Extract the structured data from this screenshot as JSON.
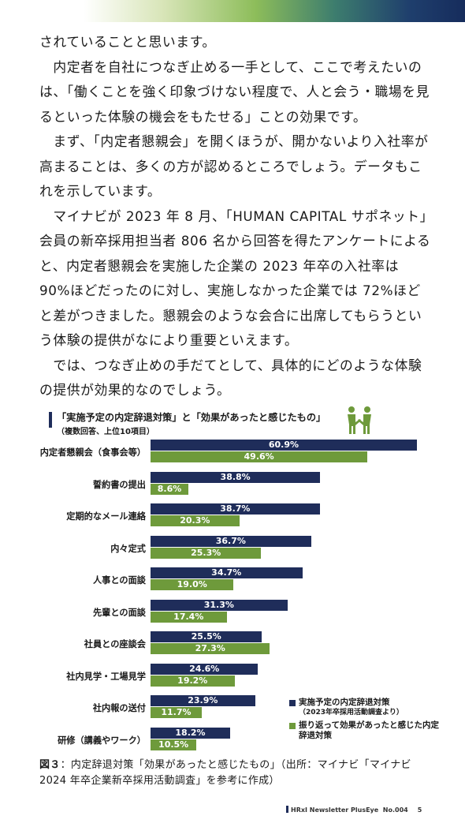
{
  "body_paragraphs": [
    "されていることと思います。",
    "　内定者を自社につなぎ止める一手として、ここで考えたいのは、「働くことを強く印象づけない程度で、人と会う・職場を見るといった体験の機会をもたせる」ことの効果です。",
    "　まず、「内定者懇親会」を開くほうが、開かないより入社率が高まることは、多くの方が認めるところでしょう。データもこれを示しています。",
    "　マイナビが 2023 年 8 月、「HUMAN CAPITAL サポネット」会員の新卒採用担当者 806 名から回答を得たアンケートによると、内定者懇親会を実施した企業の 2023 年卒の入社率は 90%ほどだったのに対し、実施しなかった企業では 72%ほどと差がつきました。懇親会のような会合に出席してもらうという体験の提供がなにより重要といえます。",
    "　では、つなぎ止めの手だてとして、具体的にどのような体験の提供が効果的なのでしょう。"
  ],
  "chart_data": {
    "type": "bar",
    "orientation": "horizontal",
    "title": "「実施予定の内定辞退対策」と「効果があったと感じたもの」",
    "subtitle": "（複数回答、上位10項目）",
    "categories": [
      "内定者懇親会（食事会等）",
      "誓約書の提出",
      "定期的なメール連絡",
      "内々定式",
      "人事との面談",
      "先輩との面談",
      "社員との座談会",
      "社内見学・工場見学",
      "社内報の送付",
      "研修（講義やワーク）"
    ],
    "series": [
      {
        "name": "実施予定の内定辞退対策",
        "note": "（2023年卒採用活動調査より）",
        "values": [
          60.9,
          38.8,
          38.7,
          36.7,
          34.7,
          31.3,
          25.5,
          24.6,
          23.9,
          18.2
        ],
        "color": "#1f2d5a"
      },
      {
        "name": "振り返って効果があったと感じた内定辞退対策",
        "note": "",
        "values": [
          49.6,
          8.6,
          20.3,
          25.3,
          19.0,
          17.4,
          27.3,
          19.2,
          11.7,
          10.5
        ],
        "color": "#6e9a3b"
      }
    ],
    "value_suffix": "%",
    "xlim": [
      0,
      62
    ]
  },
  "legend": {
    "items": [
      {
        "label": "実施予定の内定辞退対策",
        "note": "（2023年卒採用活動調査より）",
        "color": "#1f2d5a"
      },
      {
        "label": "振り返って効果があったと感じた内定辞退対策",
        "note": "",
        "color": "#6e9a3b"
      }
    ]
  },
  "caption": {
    "label": "図３",
    "text": "：内定辞退対策「効果があったと感じたもの」（出所：マイナビ「マイナビ 2024 年卒企業新卒採用活動調査」を参考に作成）"
  },
  "footer": {
    "publication": "HRxI Newsletter PlusEye",
    "issue": "No.004",
    "page_number": "5"
  },
  "icons": {
    "handshake": "handshake-icon"
  }
}
